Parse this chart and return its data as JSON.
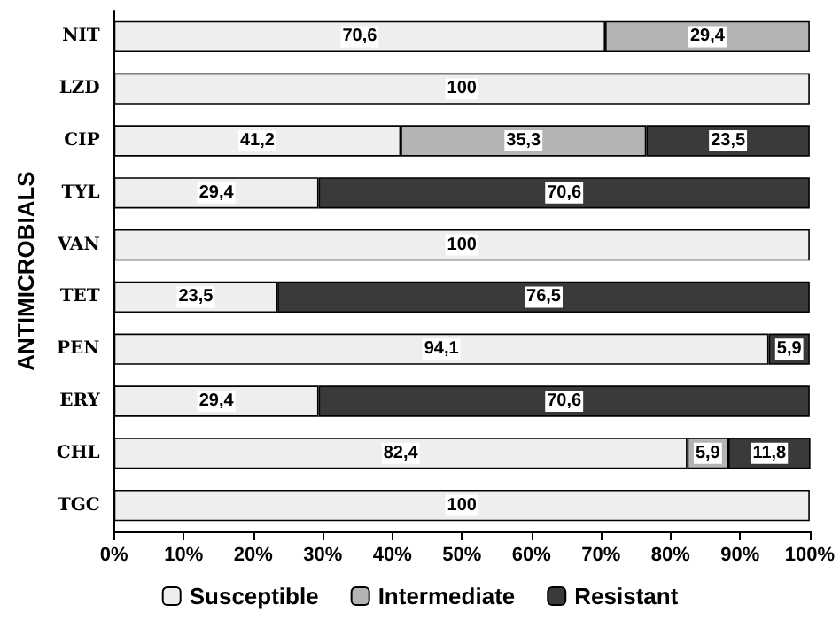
{
  "chart_data": {
    "type": "bar",
    "orientation": "horizontal",
    "stacked": true,
    "ylabel": "ANTIMICROBIALS",
    "categories": [
      "NIT",
      "LZD",
      "CIP",
      "TYL",
      "VAN",
      "TET",
      "PEN",
      "ERY",
      "CHL",
      "TGC"
    ],
    "series": [
      {
        "name": "Susceptible",
        "color": "#eeeeee",
        "values": [
          70.6,
          100,
          41.2,
          29.4,
          100,
          23.5,
          94.1,
          29.4,
          82.4,
          100
        ],
        "value_labels": [
          "70,6",
          "100",
          "41,2",
          "29,4",
          "100",
          "23,5",
          "94,1",
          "29,4",
          "82,4",
          "100"
        ]
      },
      {
        "name": "Intermediate",
        "color": "#b4b4b4",
        "values": [
          29.4,
          0,
          35.3,
          0,
          0,
          0,
          0,
          0,
          5.9,
          0
        ],
        "value_labels": [
          "29,4",
          null,
          "35,3",
          null,
          null,
          null,
          null,
          null,
          "5,9",
          null
        ]
      },
      {
        "name": "Resistant",
        "color": "#3a3a3a",
        "values": [
          0,
          0,
          23.5,
          70.6,
          0,
          76.5,
          5.9,
          70.6,
          11.8,
          0
        ],
        "value_labels": [
          null,
          null,
          "23,5",
          "70,6",
          null,
          "76,5",
          "5,9",
          "70,6",
          "11,8",
          null
        ]
      }
    ],
    "xlim": [
      0,
      100
    ],
    "xticks": [
      {
        "value": 0,
        "label": "0%"
      },
      {
        "value": 10,
        "label": "10%"
      },
      {
        "value": 20,
        "label": "20%"
      },
      {
        "value": 30,
        "label": "30%"
      },
      {
        "value": 40,
        "label": "40%"
      },
      {
        "value": 50,
        "label": "50%"
      },
      {
        "value": 60,
        "label": "60%"
      },
      {
        "value": 70,
        "label": "70%"
      },
      {
        "value": 80,
        "label": "80%"
      },
      {
        "value": 90,
        "label": "90%"
      },
      {
        "value": 100,
        "label": "100%"
      }
    ],
    "grid": false,
    "legend": "bottom"
  }
}
